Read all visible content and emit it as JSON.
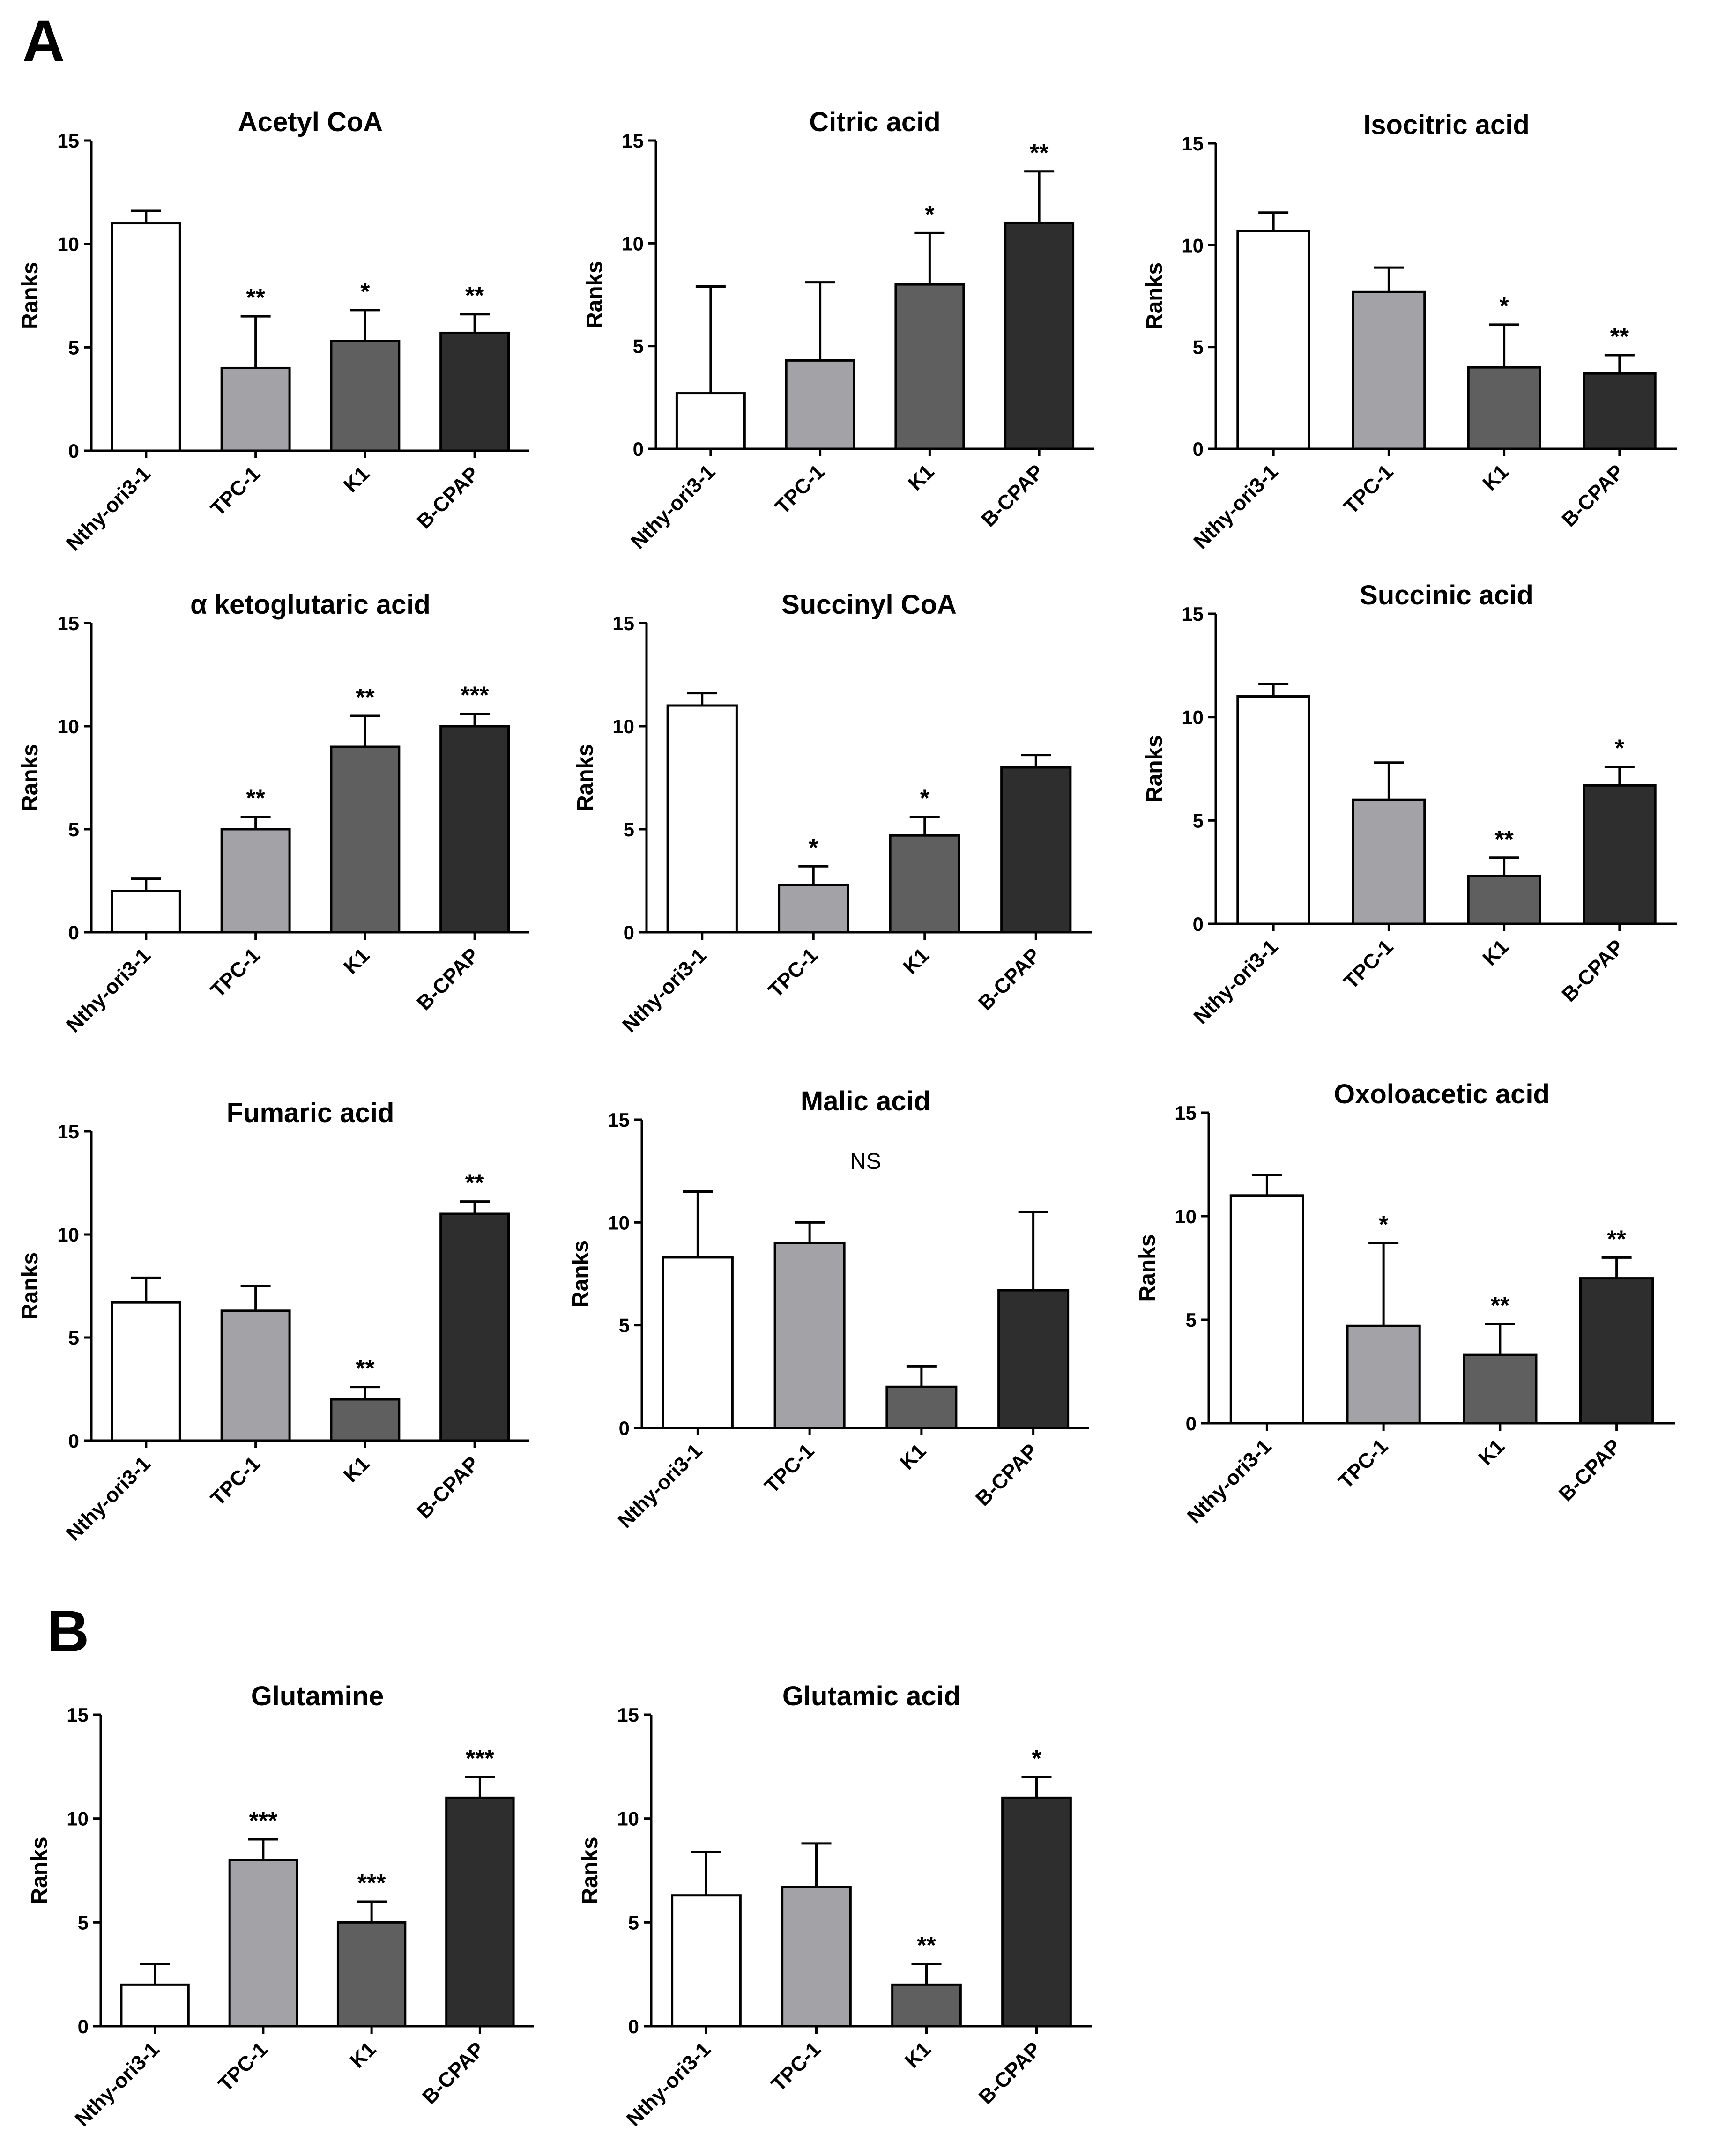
{
  "figure": {
    "panel_labels": [
      {
        "id": "A",
        "text": "A"
      },
      {
        "id": "B",
        "text": "B"
      }
    ]
  },
  "colors": {
    "Nthy-ori3-1": "#ffffff",
    "TPC-1": "#a3a3a7",
    "K1": "#5f5f5f",
    "B-CPAP": "#2e2e2e",
    "stroke": "#000000"
  },
  "chart_data": [
    {
      "panel": "A",
      "type": "bar",
      "title": "Acetyl CoA",
      "ylabel": "Ranks",
      "ylim": [
        0,
        15
      ],
      "yticks": [
        0,
        5,
        10,
        15
      ],
      "categories": [
        "Nthy-ori3-1",
        "TPC-1",
        "K1",
        "B-CPAP"
      ],
      "values": [
        11.0,
        4.0,
        5.3,
        5.7
      ],
      "errors": [
        0.6,
        2.5,
        1.5,
        0.9
      ],
      "significance": [
        "",
        "**",
        "*",
        "**"
      ]
    },
    {
      "panel": "A",
      "type": "bar",
      "title": "Citric acid",
      "ylabel": "Ranks",
      "ylim": [
        0,
        15
      ],
      "yticks": [
        0,
        5,
        10,
        15
      ],
      "categories": [
        "Nthy-ori3-1",
        "TPC-1",
        "K1",
        "B-CPAP"
      ],
      "values": [
        2.7,
        4.3,
        8.0,
        11.0
      ],
      "errors": [
        5.2,
        3.8,
        2.5,
        2.5
      ],
      "significance": [
        "",
        "",
        "*",
        "**"
      ]
    },
    {
      "panel": "A",
      "type": "bar",
      "title": "Isocitric acid",
      "ylabel": "Ranks",
      "ylim": [
        0,
        15
      ],
      "yticks": [
        0,
        5,
        10,
        15
      ],
      "categories": [
        "Nthy-ori3-1",
        "TPC-1",
        "K1",
        "B-CPAP"
      ],
      "values": [
        10.7,
        7.7,
        4.0,
        3.7
      ],
      "errors": [
        0.9,
        1.2,
        2.1,
        0.9
      ],
      "significance": [
        "",
        "",
        "*",
        "**"
      ]
    },
    {
      "panel": "A",
      "type": "bar",
      "title": "α ketoglutaric acid",
      "ylabel": "Ranks",
      "ylim": [
        0,
        15
      ],
      "yticks": [
        0,
        5,
        10,
        15
      ],
      "categories": [
        "Nthy-ori3-1",
        "TPC-1",
        "K1",
        "B-CPAP"
      ],
      "values": [
        2.0,
        5.0,
        9.0,
        10.0
      ],
      "errors": [
        0.6,
        0.6,
        1.5,
        0.6
      ],
      "significance": [
        "",
        "**",
        "**",
        "***"
      ]
    },
    {
      "panel": "A",
      "type": "bar",
      "title": "Succinyl CoA",
      "ylabel": "Ranks",
      "ylim": [
        0,
        15
      ],
      "yticks": [
        0,
        5,
        10,
        15
      ],
      "categories": [
        "Nthy-ori3-1",
        "TPC-1",
        "K1",
        "B-CPAP"
      ],
      "values": [
        11.0,
        2.3,
        4.7,
        8.0
      ],
      "errors": [
        0.6,
        0.9,
        0.9,
        0.6
      ],
      "significance": [
        "",
        "*",
        "*",
        ""
      ]
    },
    {
      "panel": "A",
      "type": "bar",
      "title": "Succinic acid",
      "ylabel": "Ranks",
      "ylim": [
        0,
        15
      ],
      "yticks": [
        0,
        5,
        10,
        15
      ],
      "categories": [
        "Nthy-ori3-1",
        "TPC-1",
        "K1",
        "B-CPAP"
      ],
      "values": [
        11.0,
        6.0,
        2.3,
        6.7
      ],
      "errors": [
        0.6,
        1.8,
        0.9,
        0.9
      ],
      "significance": [
        "",
        "",
        "**",
        "*"
      ]
    },
    {
      "panel": "A",
      "type": "bar",
      "title": "Fumaric acid",
      "ylabel": "Ranks",
      "ylim": [
        0,
        15
      ],
      "yticks": [
        0,
        5,
        10,
        15
      ],
      "categories": [
        "Nthy-ori3-1",
        "TPC-1",
        "K1",
        "B-CPAP"
      ],
      "values": [
        6.7,
        6.3,
        2.0,
        11.0
      ],
      "errors": [
        1.2,
        1.2,
        0.6,
        0.6
      ],
      "significance": [
        "",
        "",
        "**",
        "**"
      ]
    },
    {
      "panel": "A",
      "type": "bar",
      "title": "Malic acid",
      "ylabel": "Ranks",
      "ylim": [
        0,
        15
      ],
      "yticks": [
        0,
        5,
        10,
        15
      ],
      "categories": [
        "Nthy-ori3-1",
        "TPC-1",
        "K1",
        "B-CPAP"
      ],
      "values": [
        8.3,
        9.0,
        2.0,
        6.7
      ],
      "errors": [
        3.2,
        1.0,
        1.0,
        3.8
      ],
      "significance": [
        "",
        "",
        "",
        ""
      ],
      "note": "NS"
    },
    {
      "panel": "A",
      "type": "bar",
      "title": "Oxoloacetic acid",
      "ylabel": "Ranks",
      "ylim": [
        0,
        15
      ],
      "yticks": [
        0,
        5,
        10,
        15
      ],
      "categories": [
        "Nthy-ori3-1",
        "TPC-1",
        "K1",
        "B-CPAP"
      ],
      "values": [
        11.0,
        4.7,
        3.3,
        7.0
      ],
      "errors": [
        1.0,
        4.0,
        1.5,
        1.0
      ],
      "significance": [
        "",
        "*",
        "**",
        "**"
      ]
    },
    {
      "panel": "B",
      "type": "bar",
      "title": "Glutamine",
      "ylabel": "Ranks",
      "ylim": [
        0,
        15
      ],
      "yticks": [
        0,
        5,
        10,
        15
      ],
      "categories": [
        "Nthy-ori3-1",
        "TPC-1",
        "K1",
        "B-CPAP"
      ],
      "values": [
        2.0,
        8.0,
        5.0,
        11.0
      ],
      "errors": [
        1.0,
        1.0,
        1.0,
        1.0
      ],
      "significance": [
        "",
        "***",
        "***",
        "***"
      ]
    },
    {
      "panel": "B",
      "type": "bar",
      "title": "Glutamic acid",
      "ylabel": "Ranks",
      "ylim": [
        0,
        15
      ],
      "yticks": [
        0,
        5,
        10,
        15
      ],
      "categories": [
        "Nthy-ori3-1",
        "TPC-1",
        "K1",
        "B-CPAP"
      ],
      "values": [
        6.3,
        6.7,
        2.0,
        11.0
      ],
      "errors": [
        2.1,
        2.1,
        1.0,
        1.0
      ],
      "significance": [
        "",
        "",
        "**",
        "*"
      ]
    }
  ]
}
